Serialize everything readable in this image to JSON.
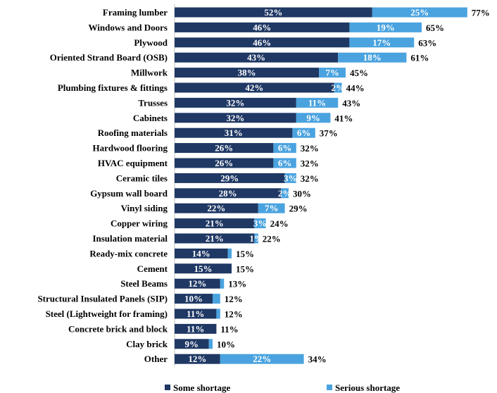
{
  "chart_data": {
    "type": "bar",
    "orientation": "horizontal",
    "stacked": true,
    "categories": [
      "Framing lumber",
      "Windows and Doors",
      "Plywood",
      "Oriented Strand Board (OSB)",
      "Millwork",
      "Plumbing fixtures & fittings",
      "Trusses",
      "Cabinets",
      "Roofing materials",
      "Hardwood flooring",
      "HVAC equipment",
      "Ceramic tiles",
      "Gypsum wall board",
      "Vinyl siding",
      "Copper wiring",
      "Insulation material",
      "Ready-mix concrete",
      "Cement",
      "Steel Beams",
      "Structural Insulated Panels (SIP)",
      "Steel (Lightweight for framing)",
      "Concrete brick and block",
      "Clay brick",
      "Other"
    ],
    "series": [
      {
        "name": "Some shortage",
        "color": "#1f3864",
        "values": [
          52,
          46,
          46,
          43,
          38,
          42,
          32,
          32,
          31,
          26,
          26,
          29,
          28,
          22,
          21,
          21,
          14,
          15,
          12,
          10,
          11,
          11,
          9,
          12
        ],
        "labels": [
          "52%",
          "46%",
          "46%",
          "43%",
          "38%",
          "42%",
          "32%",
          "32%",
          "31%",
          "26%",
          "26%",
          "29%",
          "28%",
          "22%",
          "21%",
          "21%",
          "14%",
          "15%",
          "12%",
          "10%",
          "11%",
          "11%",
          "9%",
          "12%"
        ]
      },
      {
        "name": "Serious shortage",
        "color": "#4aa3df",
        "values": [
          25,
          19,
          17,
          18,
          7,
          2,
          11,
          9,
          6,
          6,
          6,
          3,
          2,
          7,
          3,
          1,
          1,
          0,
          1,
          2,
          1,
          0,
          1,
          22
        ],
        "labels": [
          "25%",
          "19%",
          "17%",
          "18%",
          "7%",
          "2%",
          "11%",
          "9%",
          "6%",
          "6%",
          "6%",
          "3%",
          "2%",
          "7%",
          "3%",
          "1%",
          "",
          "",
          "",
          "",
          "",
          "",
          "",
          "22%"
        ]
      }
    ],
    "totals": [
      "77%",
      "65%",
      "63%",
      "61%",
      "45%",
      "44%",
      "43%",
      "41%",
      "37%",
      "32%",
      "32%",
      "32%",
      "30%",
      "29%",
      "24%",
      "22%",
      "15%",
      "15%",
      "13%",
      "12%",
      "12%",
      "11%",
      "10%",
      "34%"
    ],
    "legend": {
      "position": "bottom",
      "items": [
        "Some shortage",
        "Serious shortage"
      ]
    }
  }
}
